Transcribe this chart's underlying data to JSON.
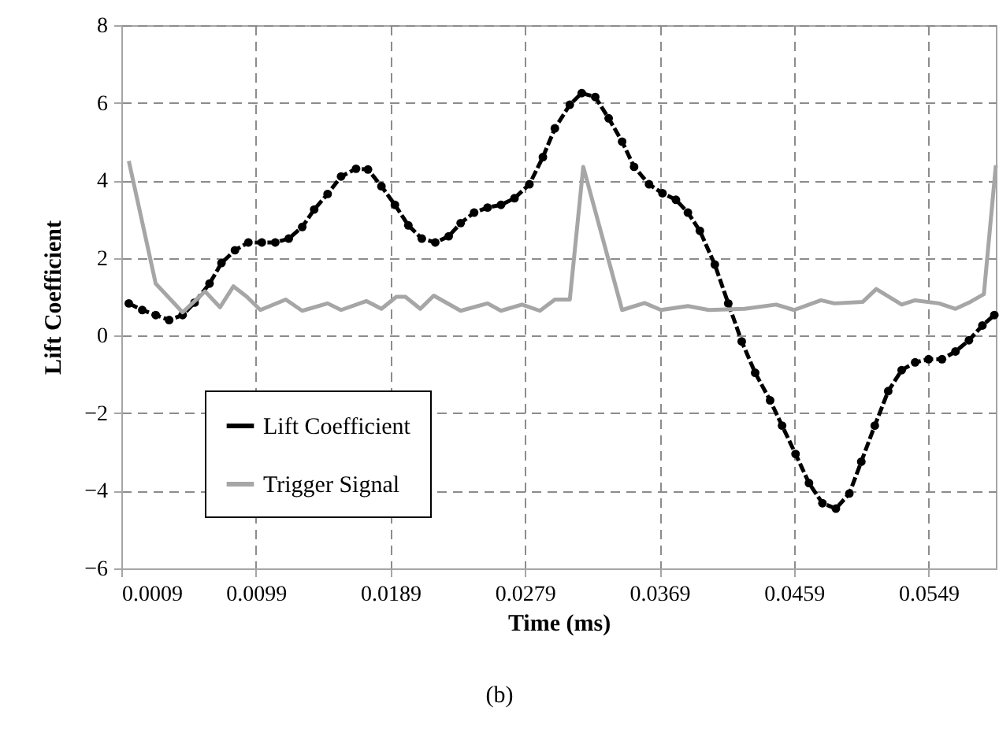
{
  "chart_data": {
    "type": "line",
    "xlabel": "Time (ms)",
    "ylabel": "Lift Coefficient",
    "annotations": [
      "(b)"
    ],
    "xlim": [
      0.0009,
      0.0594
    ],
    "xticks": [
      0.0009,
      0.0099,
      0.0189,
      0.0279,
      0.0369,
      0.0459,
      0.0549
    ],
    "ylim": [
      -6,
      8
    ],
    "yticks": [
      -6,
      -4,
      -2,
      0,
      2,
      4,
      6,
      8
    ],
    "grid": true,
    "legend": "bottom left",
    "series": [
      {
        "name": "Lift Coefficient",
        "color": "#000000",
        "marker": "circle",
        "line_style": "dashed",
        "x": [
          0.0014,
          0.0023,
          0.0032,
          0.0041,
          0.005,
          0.0058,
          0.0068,
          0.0076,
          0.0085,
          0.0094,
          0.0103,
          0.0112,
          0.0121,
          0.013,
          0.0138,
          0.0147,
          0.0156,
          0.0166,
          0.0174,
          0.0183,
          0.0192,
          0.0201,
          0.021,
          0.0219,
          0.0228,
          0.0236,
          0.0245,
          0.0254,
          0.0263,
          0.0272,
          0.0282,
          0.0291,
          0.0299,
          0.0309,
          0.0317,
          0.0326,
          0.0335,
          0.0344,
          0.0352,
          0.0362,
          0.0371,
          0.038,
          0.0388,
          0.0396,
          0.0406,
          0.0415,
          0.0424,
          0.0433,
          0.0443,
          0.0451,
          0.046,
          0.0469,
          0.0478,
          0.0487,
          0.0496,
          0.0504,
          0.0513,
          0.0522,
          0.0531,
          0.054,
          0.0549,
          0.0558,
          0.0567,
          0.0576,
          0.0585,
          0.0593
        ],
        "values": [
          0.83,
          0.66,
          0.53,
          0.4,
          0.53,
          0.85,
          1.34,
          1.87,
          2.2,
          2.4,
          2.4,
          2.4,
          2.5,
          2.8,
          3.25,
          3.65,
          4.1,
          4.3,
          4.28,
          3.85,
          3.37,
          2.84,
          2.5,
          2.4,
          2.56,
          2.9,
          3.17,
          3.3,
          3.37,
          3.54,
          3.9,
          4.6,
          5.34,
          5.95,
          6.25,
          6.15,
          5.6,
          5.0,
          4.35,
          3.9,
          3.67,
          3.5,
          3.17,
          2.7,
          1.83,
          0.83,
          -0.15,
          -0.96,
          -1.67,
          -2.32,
          -3.05,
          -3.8,
          -4.32,
          -4.46,
          -4.07,
          -3.25,
          -2.32,
          -1.43,
          -0.89,
          -0.69,
          -0.61,
          -0.61,
          -0.41,
          -0.12,
          0.26,
          0.53
        ]
      },
      {
        "name": "Trigger Signal",
        "color": "#a6a6a6",
        "marker": "none",
        "line_style": "solid",
        "x": [
          0.0014,
          0.0032,
          0.005,
          0.0065,
          0.0075,
          0.0084,
          0.0093,
          0.0102,
          0.0119,
          0.013,
          0.0147,
          0.0156,
          0.0173,
          0.0183,
          0.0193,
          0.0199,
          0.0209,
          0.0218,
          0.0236,
          0.0254,
          0.0263,
          0.0277,
          0.0289,
          0.0299,
          0.0309,
          0.0318,
          0.0344,
          0.0359,
          0.037,
          0.0388,
          0.0402,
          0.0426,
          0.0447,
          0.0459,
          0.0477,
          0.0486,
          0.0505,
          0.0514,
          0.0531,
          0.054,
          0.0556,
          0.0567,
          0.0577,
          0.0586,
          0.0594
        ],
        "values": [
          4.5,
          1.34,
          0.6,
          1.14,
          0.73,
          1.27,
          1.0,
          0.66,
          0.93,
          0.64,
          0.83,
          0.66,
          0.89,
          0.69,
          1.0,
          1.0,
          0.69,
          1.03,
          0.64,
          0.83,
          0.64,
          0.8,
          0.64,
          0.93,
          0.93,
          4.35,
          0.66,
          0.84,
          0.66,
          0.76,
          0.66,
          0.69,
          0.8,
          0.66,
          0.91,
          0.83,
          0.87,
          1.2,
          0.8,
          0.91,
          0.83,
          0.69,
          0.87,
          1.07,
          4.39
        ]
      }
    ]
  }
}
